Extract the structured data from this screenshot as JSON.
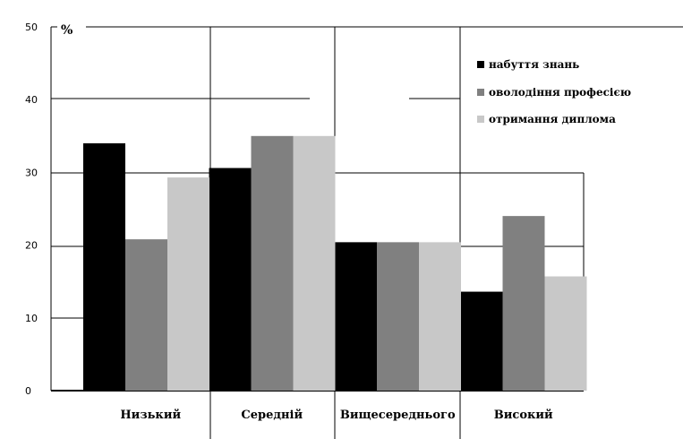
{
  "chart_data": {
    "type": "bar",
    "unit_label": "%",
    "categories": [
      "Низький",
      "Середній",
      "Вищесереднього",
      "Високий"
    ],
    "series": [
      {
        "name": "набуття знань",
        "color": "#000000",
        "values": [
          34,
          30.6,
          20.4,
          13.6
        ]
      },
      {
        "name": "оволодіння професією",
        "color": "#808080",
        "values": [
          20.8,
          35,
          20.4,
          24
        ]
      },
      {
        "name": "отримання диплома",
        "color": "#c8c8c8",
        "values": [
          29.3,
          35,
          20.4,
          15.7
        ]
      }
    ],
    "ylim": [
      0,
      50
    ],
    "yticks": [
      0,
      10,
      20,
      30,
      40,
      50
    ],
    "grid": true,
    "legend_position": "top-right"
  }
}
